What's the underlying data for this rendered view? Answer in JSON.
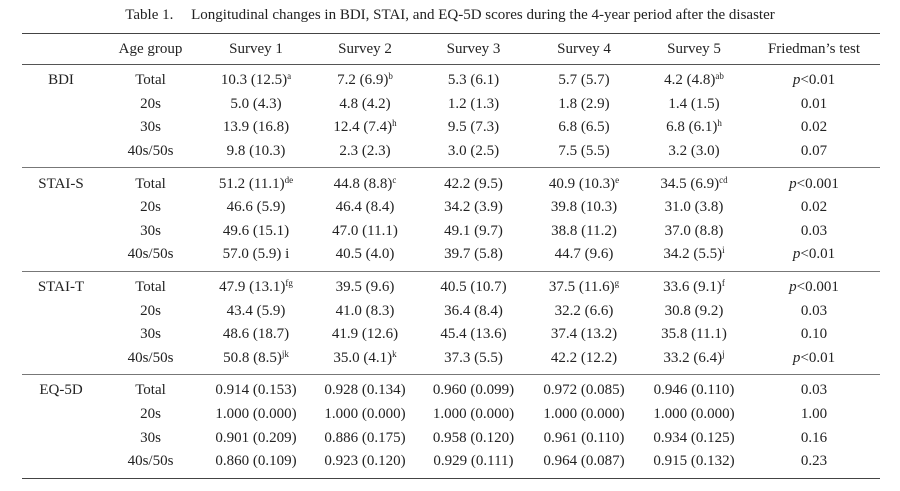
{
  "caption": {
    "label": "Table 1.",
    "text": "Longitudinal changes in BDI, STAI, and EQ-5D scores during the 4-year period after the disaster"
  },
  "headers": [
    "",
    "Age group",
    "Survey 1",
    "Survey 2",
    "Survey 3",
    "Survey 4",
    "Survey 5",
    "Friedman’s test"
  ],
  "groups": [
    {
      "scale": "BDI",
      "rows": [
        {
          "age": "Total",
          "cells": [
            [
              "10.3 (12.5)",
              "a"
            ],
            [
              "7.2 (6.9)",
              "b"
            ],
            [
              "5.3 (6.1)",
              ""
            ],
            [
              "5.7 (5.7)",
              ""
            ],
            [
              "4.2 (4.8)",
              "ab"
            ]
          ],
          "p": [
            "p",
            "<0.01"
          ]
        },
        {
          "age": "20s",
          "cells": [
            [
              "5.0 (4.3)",
              ""
            ],
            [
              "4.8 (4.2)",
              ""
            ],
            [
              "1.2 (1.3)",
              ""
            ],
            [
              "1.8 (2.9)",
              ""
            ],
            [
              "1.4 (1.5)",
              ""
            ]
          ],
          "p": [
            "",
            "0.01"
          ]
        },
        {
          "age": "30s",
          "cells": [
            [
              "13.9 (16.8)",
              ""
            ],
            [
              "12.4 (7.4)",
              "h"
            ],
            [
              "9.5 (7.3)",
              ""
            ],
            [
              "6.8 (6.5)",
              ""
            ],
            [
              "6.8 (6.1)",
              "h"
            ]
          ],
          "p": [
            "",
            "0.02"
          ]
        },
        {
          "age": "40s/50s",
          "cells": [
            [
              "9.8 (10.3)",
              ""
            ],
            [
              "2.3 (2.3)",
              ""
            ],
            [
              "3.0 (2.5)",
              ""
            ],
            [
              "7.5 (5.5)",
              ""
            ],
            [
              "3.2 (3.0)",
              ""
            ]
          ],
          "p": [
            "",
            "0.07"
          ]
        }
      ]
    },
    {
      "scale": "STAI-S",
      "rows": [
        {
          "age": "Total",
          "cells": [
            [
              "51.2 (11.1)",
              "de"
            ],
            [
              "44.8 (8.8)",
              "c"
            ],
            [
              "42.2 (9.5)",
              ""
            ],
            [
              "40.9 (10.3)",
              "e"
            ],
            [
              "34.5 (6.9)",
              "cd"
            ]
          ],
          "p": [
            "p",
            "<0.001"
          ]
        },
        {
          "age": "20s",
          "cells": [
            [
              "46.6 (5.9)",
              ""
            ],
            [
              "46.4 (8.4)",
              ""
            ],
            [
              "34.2 (3.9)",
              ""
            ],
            [
              "39.8 (10.3)",
              ""
            ],
            [
              "31.0 (3.8)",
              ""
            ]
          ],
          "p": [
            "",
            "0.02"
          ]
        },
        {
          "age": "30s",
          "cells": [
            [
              "49.6 (15.1)",
              ""
            ],
            [
              "47.0 (11.1)",
              ""
            ],
            [
              "49.1 (9.7)",
              ""
            ],
            [
              "38.8 (11.2)",
              ""
            ],
            [
              "37.0 (8.8)",
              ""
            ]
          ],
          "p": [
            "",
            "0.03"
          ]
        },
        {
          "age": "40s/50s",
          "cells": [
            [
              "57.0 (5.9) i",
              ""
            ],
            [
              "40.5 (4.0)",
              ""
            ],
            [
              "39.7 (5.8)",
              ""
            ],
            [
              "44.7 (9.6)",
              ""
            ],
            [
              "34.2 (5.5)",
              "i"
            ]
          ],
          "p": [
            "p",
            "<0.01"
          ]
        }
      ]
    },
    {
      "scale": "STAI-T",
      "rows": [
        {
          "age": "Total",
          "cells": [
            [
              "47.9 (13.1)",
              "fg"
            ],
            [
              "39.5 (9.6)",
              ""
            ],
            [
              "40.5 (10.7)",
              ""
            ],
            [
              "37.5 (11.6)",
              "g"
            ],
            [
              "33.6 (9.1)",
              "f"
            ]
          ],
          "p": [
            "p",
            "<0.001"
          ]
        },
        {
          "age": "20s",
          "cells": [
            [
              "43.4 (5.9)",
              ""
            ],
            [
              "41.0 (8.3)",
              ""
            ],
            [
              "36.4 (8.4)",
              ""
            ],
            [
              "32.2 (6.6)",
              ""
            ],
            [
              "30.8 (9.2)",
              ""
            ]
          ],
          "p": [
            "",
            "0.03"
          ]
        },
        {
          "age": "30s",
          "cells": [
            [
              "48.6 (18.7)",
              ""
            ],
            [
              "41.9 (12.6)",
              ""
            ],
            [
              "45.4 (13.6)",
              ""
            ],
            [
              "37.4 (13.2)",
              ""
            ],
            [
              "35.8 (11.1)",
              ""
            ]
          ],
          "p": [
            "",
            "0.10"
          ]
        },
        {
          "age": "40s/50s",
          "cells": [
            [
              "50.8 (8.5)",
              "jk"
            ],
            [
              "35.0 (4.1)",
              "k"
            ],
            [
              "37.3 (5.5)",
              ""
            ],
            [
              "42.2 (12.2)",
              ""
            ],
            [
              "33.2 (6.4)",
              "j"
            ]
          ],
          "p": [
            "p",
            "<0.01"
          ]
        }
      ]
    },
    {
      "scale": "EQ-5D",
      "rows": [
        {
          "age": "Total",
          "cells": [
            [
              "0.914 (0.153)",
              ""
            ],
            [
              "0.928 (0.134)",
              ""
            ],
            [
              "0.960 (0.099)",
              ""
            ],
            [
              "0.972 (0.085)",
              ""
            ],
            [
              "0.946 (0.110)",
              ""
            ]
          ],
          "p": [
            "",
            "0.03"
          ]
        },
        {
          "age": "20s",
          "cells": [
            [
              "1.000 (0.000)",
              ""
            ],
            [
              "1.000 (0.000)",
              ""
            ],
            [
              "1.000 (0.000)",
              ""
            ],
            [
              "1.000 (0.000)",
              ""
            ],
            [
              "1.000 (0.000)",
              ""
            ]
          ],
          "p": [
            "",
            "1.00"
          ]
        },
        {
          "age": "30s",
          "cells": [
            [
              "0.901 (0.209)",
              ""
            ],
            [
              "0.886 (0.175)",
              ""
            ],
            [
              "0.958 (0.120)",
              ""
            ],
            [
              "0.961 (0.110)",
              ""
            ],
            [
              "0.934 (0.125)",
              ""
            ]
          ],
          "p": [
            "",
            "0.16"
          ]
        },
        {
          "age": "40s/50s",
          "cells": [
            [
              "0.860 (0.109)",
              ""
            ],
            [
              "0.923 (0.120)",
              ""
            ],
            [
              "0.929 (0.111)",
              ""
            ],
            [
              "0.964 (0.087)",
              ""
            ],
            [
              "0.915 (0.132)",
              ""
            ]
          ],
          "p": [
            "",
            "0.23"
          ]
        }
      ]
    }
  ]
}
